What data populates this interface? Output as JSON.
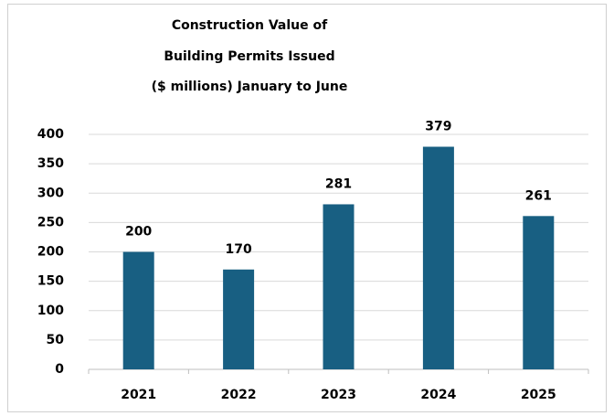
{
  "chart_data": {
    "type": "bar",
    "title": [
      "Construction Value of",
      "Building Permits Issued",
      "($ millions) January to June"
    ],
    "categories": [
      "2021",
      "2022",
      "2023",
      "2024",
      "2025"
    ],
    "values": [
      200,
      170,
      281,
      379,
      261
    ],
    "color": "#185f82",
    "ylim": [
      0,
      400
    ],
    "yticks": [
      0,
      50,
      100,
      150,
      200,
      250,
      300,
      350,
      400
    ],
    "grid": true
  }
}
